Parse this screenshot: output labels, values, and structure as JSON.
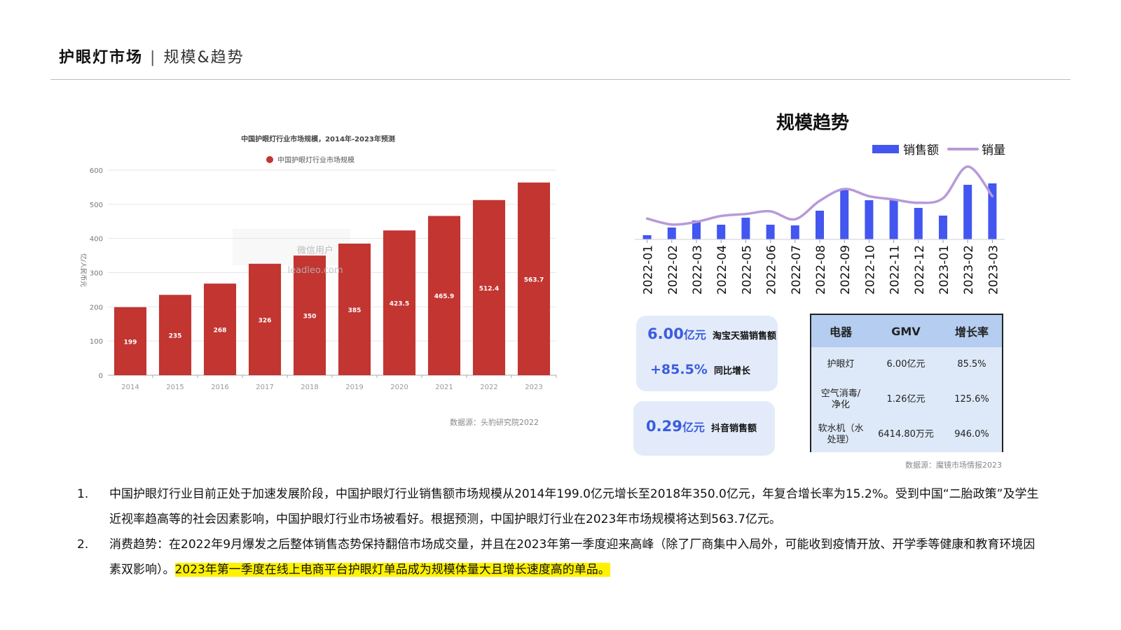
{
  "header": {
    "title_main": "护眼灯市场",
    "separator": "|",
    "title_sub": "规模&趋势"
  },
  "colors": {
    "bar_red": "#c23531",
    "bar_blue": "#4356f0",
    "line_purple": "#b79ad8",
    "card_bg": "#e3ebfa",
    "accent_blue": "#3b5ce0",
    "highlight": "#fff200"
  },
  "chart_data": [
    {
      "type": "bar",
      "title": "中国护眼灯行业市场规模，2014年-2023年预测",
      "ylabel": "亿/人民币元",
      "categories": [
        "2014",
        "2015",
        "2016",
        "2017",
        "2018",
        "2019",
        "2020",
        "2021",
        "2022",
        "2023"
      ],
      "series": [
        {
          "name": "中国护眼灯行业市场规模",
          "values": [
            199,
            235,
            268,
            326,
            350,
            385,
            423.5,
            465.9,
            512.4,
            563.7
          ]
        }
      ],
      "data_labels": [
        "199",
        "235",
        "268",
        "326",
        "350",
        "385",
        "423.5",
        "465.9",
        "512.4",
        "563.7"
      ],
      "ylim": [
        0,
        600
      ],
      "yticks": [
        "0",
        "100",
        "200",
        "300",
        "400",
        "500",
        "600"
      ],
      "grid": true,
      "legend": "top-center",
      "watermark": [
        "微信用户",
        "leadleo.com"
      ],
      "source": "数据源：头豹研究院2022"
    },
    {
      "type": "bar",
      "title": "规模趋势",
      "categories": [
        "2022-01",
        "2022-02",
        "2022-03",
        "2022-04",
        "2022-05",
        "2022-06",
        "2022-07",
        "2022-08",
        "2022-09",
        "2022-10",
        "2022-11",
        "2022-12",
        "2023-01",
        "2023-02",
        "2023-03"
      ],
      "series": [
        {
          "name": "销售额",
          "type": "bar",
          "values": [
            6,
            17,
            27,
            21,
            31,
            21,
            20,
            41,
            73,
            56,
            57,
            45,
            34,
            78,
            80
          ]
        },
        {
          "name": "销量",
          "type": "line",
          "values": [
            21,
            12,
            16,
            25,
            28,
            32,
            20,
            48,
            66,
            55,
            50,
            45,
            52,
            100,
            55
          ]
        }
      ],
      "axes_values_shown": false,
      "legend": "top-right"
    }
  ],
  "cards": [
    {
      "value": "6.00",
      "unit": "亿元",
      "label": "淘宝天猫销售额",
      "growth": "+85.5%",
      "growth_label": "同比增长"
    },
    {
      "value": "0.29",
      "unit": "亿元",
      "label": "抖音销售额"
    }
  ],
  "table": {
    "headers": [
      "电器",
      "GMV",
      "增长率"
    ],
    "rows": [
      [
        "护眼灯",
        "6.00亿元",
        "85.5%"
      ],
      [
        "空气消毒/净化",
        "1.26亿元",
        "125.6%"
      ],
      [
        "软水机（水处理）",
        "6414.80万元",
        "946.0%"
      ]
    ]
  },
  "source_right": "数据源：魔镜市场情报2023",
  "notes": [
    {
      "num": "1.",
      "text": "中国护眼灯行业目前正处于加速发展阶段，中国护眼灯行业销售额市场规模从2014年199.0亿元增长至2018年350.0亿元，年复合增长率为15.2%。受到中国“二胎政策”及学生近视率趋高等的社会因素影响，中国护眼灯行业市场被看好。根据预测，中国护眼灯行业在2023年市场规模将达到563.7亿元。",
      "highlight": ""
    },
    {
      "num": "2.",
      "text": "消费趋势：在2022年9月爆发之后整体销售态势保持翻倍市场成交量，并且在2023年第一季度迎来高峰（除了厂商集中入局外，可能收到疫情开放、开学季等健康和教育环境因素双影响）。",
      "highlight": "2023年第一季度在线上电商平台护眼灯单品成为规模体量大且增长速度高的单品。"
    }
  ]
}
